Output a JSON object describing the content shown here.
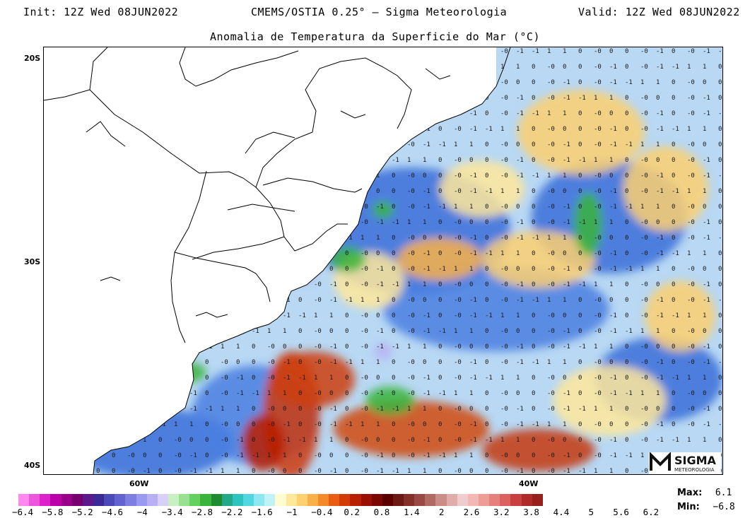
{
  "header": {
    "init": "Init: 12Z Wed 08JUN2022",
    "source": "CMEMS/OSTIA 0.25° – Sigma Meteorologia",
    "valid": "Valid: 12Z Wed 08JUN2022"
  },
  "title": "Anomalia de Temperatura da Superficie do Mar (°C)",
  "map": {
    "lat_labels": [
      "20S",
      "30S",
      "40S"
    ],
    "lon_labels": [
      "60W",
      "40W"
    ],
    "land_color": "#ffffff",
    "border_color": "#000000"
  },
  "colorbar": {
    "colors": [
      "#ff88ee",
      "#ee55dd",
      "#dd22cc",
      "#bb00aa",
      "#990088",
      "#77006e",
      "#5b1a8a",
      "#3b2a96",
      "#4a4ab8",
      "#6262d0",
      "#7e7ee2",
      "#9a9af0",
      "#b8b0f2",
      "#d8d0f6",
      "#c8f0c0",
      "#96e290",
      "#64d060",
      "#3ab43a",
      "#1e8c2e",
      "#22aa88",
      "#2dc4c0",
      "#50d8e0",
      "#8ee8f2",
      "#c0f2f8",
      "#fffcd0",
      "#ffe89a",
      "#fdd070",
      "#f9b048",
      "#f48a2a",
      "#e85c14",
      "#d23a08",
      "#b82000",
      "#9a1000",
      "#7a0800",
      "#5a0000",
      "#6e1a14",
      "#86302a",
      "#9a4a44",
      "#b26a64",
      "#cc8c88",
      "#e0aeaa",
      "#f0cccc",
      "#f4b8b4",
      "#ee9c96",
      "#e6807c",
      "#dc6262",
      "#c84040",
      "#b02a2a",
      "#98201c"
    ],
    "labels": [
      "-6.4",
      "-5.8",
      "-5.2",
      "-4.6",
      "-4",
      "-3.4",
      "-2.8",
      "-2.2",
      "-1.6",
      "-1",
      "-0.4",
      "0.2",
      "0.8",
      "1.4",
      "2",
      "2.6",
      "3.2",
      "3.8",
      "4.4",
      "5",
      "5.6",
      "6.2"
    ]
  },
  "stats": {
    "max_label": "Max:",
    "max_value": "6.1",
    "min_label": "Min:",
    "min_value": "−6.8"
  },
  "logo": {
    "name": "SIGMA",
    "tagline": "METEOROLOGIA"
  }
}
